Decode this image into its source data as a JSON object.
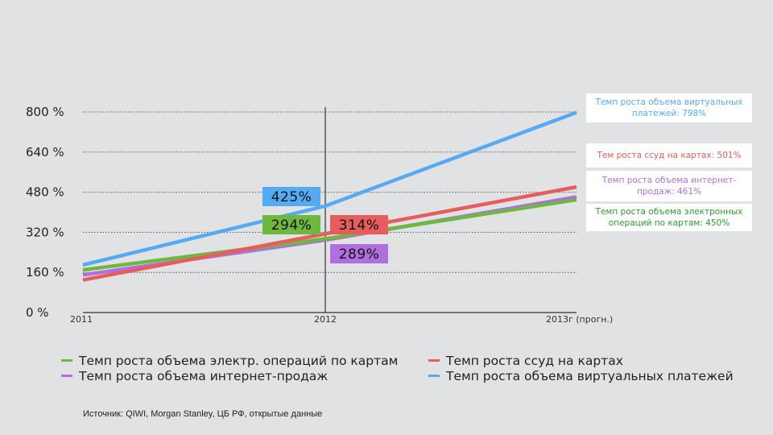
{
  "chart_data": {
    "type": "line",
    "x": [
      "2011",
      "2012",
      "2013г (прогн.)"
    ],
    "xticks": [
      "2011",
      "2012",
      "2013г (прогн.)"
    ],
    "ylim": [
      0,
      800
    ],
    "yticks": [
      0,
      160,
      320,
      480,
      640,
      800
    ],
    "ytick_labels": [
      "0 %",
      "160 %",
      "320 %",
      "480 %",
      "640 %",
      "800 %"
    ],
    "grid": "horizontal dotted",
    "series": [
      {
        "name": "Темп роста объема электр. операций по картам",
        "color": "#6fb83f",
        "values": [
          170,
          294,
          450
        ]
      },
      {
        "name": "Темп роста ссуд на картах",
        "color": "#e75c5c",
        "values": [
          130,
          314,
          501
        ]
      },
      {
        "name": "Темп роста объема интернет-продаж",
        "color": "#b06fe0",
        "values": [
          150,
          289,
          461
        ]
      },
      {
        "name": "Темп роста объема виртуальных платежей",
        "color": "#55aaf2",
        "values": [
          190,
          425,
          798
        ]
      }
    ],
    "callouts": [
      {
        "text": "425%",
        "color": "#55aaf2"
      },
      {
        "text": "294%",
        "color": "#6fb83f"
      },
      {
        "text": "314%",
        "color": "#e75c5c"
      },
      {
        "text": "289%",
        "color": "#b06fe0"
      }
    ],
    "vertical_marker": "2012"
  },
  "side_labels": {
    "virtual": {
      "text": "Темп роста объема виртуальных платежей: 798%",
      "color": "#55aaf2"
    },
    "loans": {
      "text": "Тем роста ссуд на картах: 501%",
      "color": "#e75c5c"
    },
    "internet": {
      "text": "Темп роста объема интернет-продаж: 461%",
      "color": "#b06fe0"
    },
    "cards": {
      "text": "Темп роста объема электронных операций по картам: 450%",
      "color": "#2e9a2e"
    }
  },
  "legend": [
    {
      "label": "Темп роста объема электр. операций по картам",
      "color": "#6fb83f"
    },
    {
      "label": "Темп роста ссуд на картах",
      "color": "#e75c5c"
    },
    {
      "label": "Темп роста объема интернет-продаж",
      "color": "#b06fe0"
    },
    {
      "label": "Темп роста объема виртуальных платежей",
      "color": "#55aaf2"
    }
  ],
  "source": "Источник: QIWI, Morgan Stanley, ЦБ РФ, открытые данные"
}
